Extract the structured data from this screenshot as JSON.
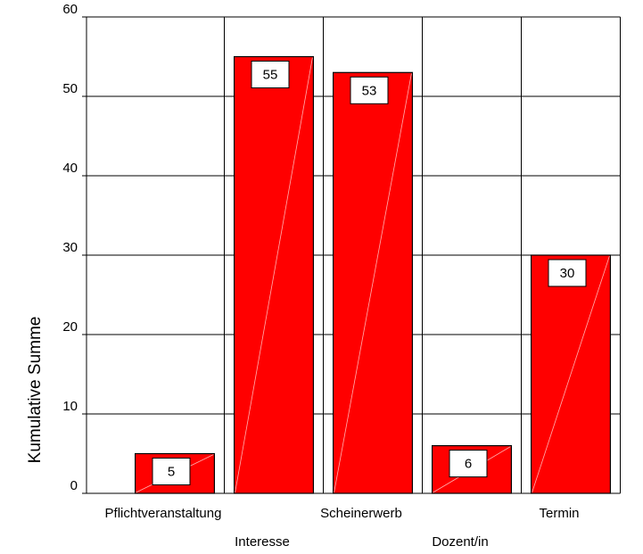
{
  "chart_data": {
    "type": "bar",
    "y_label": "Kumulative Summe",
    "categories": [
      "Pflichtveranstaltung",
      "Interesse",
      "Scheinerwerb",
      "Dozent/in",
      "Termin"
    ],
    "values": [
      5,
      55,
      53,
      6,
      30
    ],
    "color": "#ff0000",
    "ylim": [
      0,
      60
    ],
    "yticks": [
      0,
      10,
      20,
      30,
      40,
      50,
      60
    ],
    "grid": true
  }
}
